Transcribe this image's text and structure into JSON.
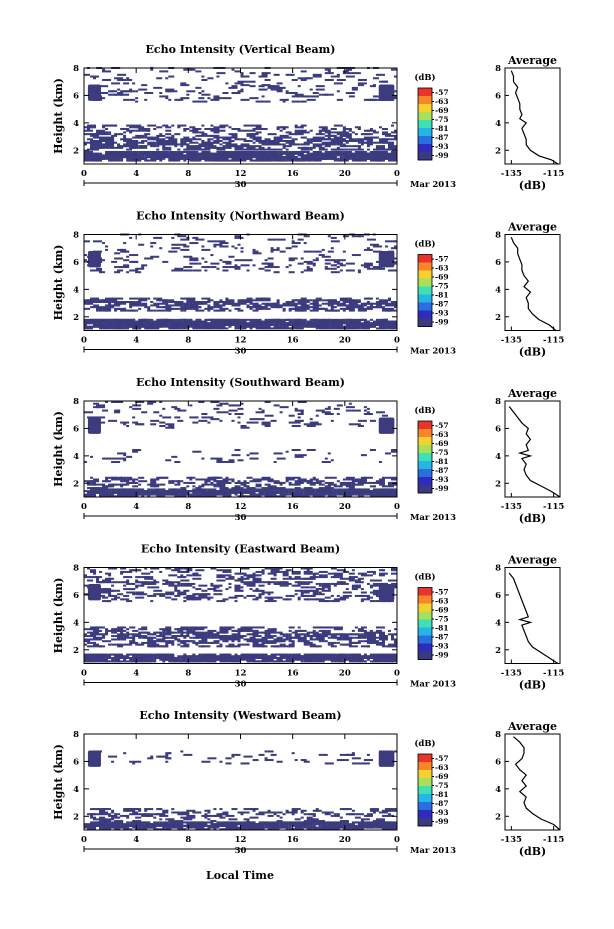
{
  "figure": {
    "x_label": "Local Time",
    "colorbar": {
      "unit": "(dB)",
      "ticks": [
        "-57",
        "-63",
        "-69",
        "-75",
        "-81",
        "-87",
        "-93",
        "-99"
      ],
      "colors": [
        "#e8342a",
        "#f7862a",
        "#f4d12e",
        "#a8e05a",
        "#3fe0b6",
        "#26b6e6",
        "#2a6fe0",
        "#2f2bbd",
        "#3a3a80"
      ]
    }
  },
  "chart_data": [
    {
      "type": "heatmap",
      "title": "Echo Intensity (Vertical Beam)",
      "ylabel": "Height (km)",
      "xlabel": "",
      "x_ticks": [
        "0",
        "4",
        "8",
        "12",
        "16",
        "20",
        "0"
      ],
      "x_date_tick": "30",
      "x_date_label": "Mar 2013",
      "y_ticks": [
        "8",
        "6",
        "4",
        "2"
      ],
      "xlim": [
        0,
        24
      ],
      "ylim": [
        1,
        8
      ],
      "echo_color": "#3b3b7e",
      "layers": [
        [
          1.2,
          1.9,
          1.0
        ],
        [
          2.0,
          3.0,
          0.55
        ],
        [
          3.0,
          3.8,
          0.3
        ],
        [
          5.5,
          6.7,
          0.15
        ],
        [
          6.7,
          8.0,
          0.12
        ]
      ],
      "profile": {
        "title": "Average",
        "xlabel": "(dB)",
        "x_ticks": [
          "-135",
          "-115"
        ],
        "xlim": [
          -138,
          -112
        ],
        "y_ticks": [
          "8",
          "6",
          "4",
          "2"
        ],
        "ylim": [
          1,
          8
        ],
        "height": [
          1.0,
          1.3,
          1.6,
          2.0,
          2.4,
          2.8,
          3.2,
          3.6,
          4.0,
          4.3,
          4.6,
          5.0,
          5.4,
          5.8,
          6.2,
          6.6,
          7.0,
          7.4,
          7.8
        ],
        "db": [
          -113,
          -116,
          -122,
          -126,
          -128,
          -128,
          -129,
          -130,
          -128,
          -131,
          -130,
          -131,
          -131,
          -132,
          -133,
          -132,
          -134,
          -134,
          -135
        ]
      }
    },
    {
      "type": "heatmap",
      "title": "Echo Intensity (Northward Beam)",
      "ylabel": "Height (km)",
      "xlabel": "",
      "x_ticks": [
        "0",
        "4",
        "8",
        "12",
        "16",
        "20",
        "0"
      ],
      "x_date_tick": "30",
      "x_date_label": "Mar 2013",
      "y_ticks": [
        "8",
        "6",
        "4",
        "2"
      ],
      "xlim": [
        0,
        24
      ],
      "ylim": [
        1,
        8
      ],
      "echo_color": "#3b3b7e",
      "layers": [
        [
          1.1,
          1.8,
          1.0
        ],
        [
          2.4,
          3.4,
          0.5
        ],
        [
          5.2,
          6.2,
          0.2
        ],
        [
          6.2,
          8.0,
          0.1
        ]
      ],
      "profile": {
        "title": "Average",
        "xlabel": "(dB)",
        "x_ticks": [
          "-135",
          "-115"
        ],
        "xlim": [
          -138,
          -112
        ],
        "y_ticks": [
          "8",
          "6",
          "4",
          "2"
        ],
        "ylim": [
          1,
          8
        ],
        "height": [
          1.0,
          1.4,
          1.8,
          2.2,
          2.6,
          3.0,
          3.4,
          3.8,
          4.2,
          4.6,
          5.0,
          5.4,
          5.8,
          6.2,
          6.6,
          7.0,
          7.4,
          7.8
        ],
        "db": [
          -114,
          -117,
          -122,
          -125,
          -127,
          -127,
          -128,
          -126,
          -129,
          -127,
          -129,
          -130,
          -130,
          -131,
          -132,
          -132,
          -134,
          -135
        ]
      }
    },
    {
      "type": "heatmap",
      "title": "Echo Intensity (Southward Beam)",
      "ylabel": "Height (km)",
      "xlabel": "",
      "x_ticks": [
        "0",
        "4",
        "8",
        "12",
        "16",
        "20",
        "0"
      ],
      "x_date_tick": "30",
      "x_date_label": "Mar 2013",
      "y_ticks": [
        "8",
        "6",
        "4",
        "2"
      ],
      "xlim": [
        0,
        24
      ],
      "ylim": [
        1,
        8
      ],
      "echo_color": "#3b3b7e",
      "layers": [
        [
          1.0,
          1.6,
          1.0
        ],
        [
          1.6,
          2.4,
          0.4
        ],
        [
          3.5,
          4.5,
          0.08
        ],
        [
          6.0,
          8.0,
          0.1
        ]
      ],
      "profile": {
        "title": "Average",
        "xlabel": "(dB)",
        "x_ticks": [
          "-135",
          "-115"
        ],
        "xlim": [
          -138,
          -112
        ],
        "y_ticks": [
          "8",
          "6",
          "4",
          "2"
        ],
        "ylim": [
          1,
          8
        ],
        "height": [
          1.0,
          1.4,
          1.8,
          2.2,
          2.6,
          3.0,
          3.4,
          3.8,
          4.0,
          4.2,
          4.4,
          4.8,
          5.2,
          5.6,
          6.0,
          6.4,
          6.8,
          7.2,
          7.6
        ],
        "db": [
          -112,
          -116,
          -121,
          -126,
          -128,
          -129,
          -128,
          -130,
          -126,
          -131,
          -127,
          -128,
          -126,
          -128,
          -127,
          -130,
          -132,
          -134,
          -136
        ]
      }
    },
    {
      "type": "heatmap",
      "title": "Echo Intensity (Eastward Beam)",
      "ylabel": "Height (km)",
      "xlabel": "",
      "x_ticks": [
        "0",
        "4",
        "8",
        "12",
        "16",
        "20",
        "0"
      ],
      "x_date_tick": "30",
      "x_date_label": "Mar 2013",
      "y_ticks": [
        "8",
        "6",
        "4",
        "2"
      ],
      "xlim": [
        0,
        24
      ],
      "ylim": [
        1,
        8
      ],
      "echo_color": "#3b3b7e",
      "layers": [
        [
          1.1,
          1.7,
          1.0
        ],
        [
          2.2,
          3.6,
          0.5
        ],
        [
          5.5,
          8.0,
          0.25
        ]
      ],
      "profile": {
        "title": "Average",
        "xlabel": "(dB)",
        "x_ticks": [
          "-135",
          "-115"
        ],
        "xlim": [
          -138,
          -112
        ],
        "y_ticks": [
          "8",
          "6",
          "4",
          "2"
        ],
        "ylim": [
          1,
          8
        ],
        "height": [
          1.0,
          1.4,
          1.8,
          2.2,
          2.6,
          3.0,
          3.4,
          3.8,
          4.0,
          4.2,
          4.4,
          4.8,
          5.2,
          5.6,
          6.0,
          6.4,
          6.8,
          7.2,
          7.6
        ],
        "db": [
          -113,
          -117,
          -121,
          -125,
          -127,
          -128,
          -129,
          -130,
          -126,
          -131,
          -127,
          -128,
          -129,
          -130,
          -131,
          -132,
          -133,
          -134,
          -136
        ]
      }
    },
    {
      "type": "heatmap",
      "title": "Echo Intensity (Westward Beam)",
      "ylabel": "Height (km)",
      "xlabel": "Local Time",
      "x_ticks": [
        "0",
        "4",
        "8",
        "12",
        "16",
        "20",
        "0"
      ],
      "x_date_tick": "30",
      "x_date_label": "Mar 2013",
      "y_ticks": [
        "8",
        "6",
        "4",
        "2"
      ],
      "xlim": [
        0,
        24
      ],
      "ylim": [
        1,
        8
      ],
      "echo_color": "#3b3b7e",
      "layers": [
        [
          1.0,
          1.6,
          1.0
        ],
        [
          1.6,
          2.6,
          0.3
        ],
        [
          5.8,
          6.8,
          0.1
        ]
      ],
      "profile": {
        "title": "Average",
        "xlabel": "(dB)",
        "x_ticks": [
          "-135",
          "-115"
        ],
        "xlim": [
          -138,
          -112
        ],
        "y_ticks": [
          "8",
          "6",
          "4",
          "2"
        ],
        "ylim": [
          1,
          8
        ],
        "height": [
          1.0,
          1.4,
          1.8,
          2.2,
          2.6,
          3.0,
          3.4,
          3.8,
          4.2,
          4.6,
          5.0,
          5.4,
          5.8,
          6.2,
          6.6,
          7.0,
          7.4,
          7.8
        ],
        "db": [
          -112,
          -115,
          -121,
          -125,
          -128,
          -129,
          -128,
          -131,
          -128,
          -130,
          -128,
          -131,
          -133,
          -130,
          -129,
          -129,
          -131,
          -134
        ]
      }
    }
  ]
}
